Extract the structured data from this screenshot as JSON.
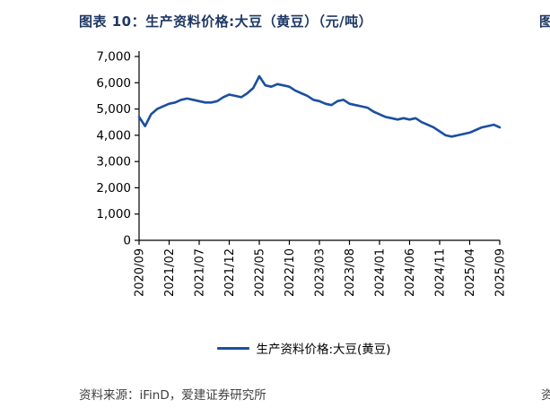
{
  "header": {
    "title": "图表 10：生产资料价格:大豆（黄豆）（元/吨）"
  },
  "footer": {
    "source": "资料来源：iFinD，爱建证券研究所"
  },
  "edge": {
    "top_right_partial": "图",
    "bottom_right_partial": "资"
  },
  "colors": {
    "line": "#1b4fa0",
    "title": "#1f3864",
    "axis": "#000000",
    "source_text": "#404040"
  },
  "chart_data": {
    "type": "line",
    "title": "图表 10：生产资料价格:大豆（黄豆）（元/吨）",
    "legend_label": "生产资料价格:大豆(黄豆)",
    "unit": "元/吨",
    "ylim": [
      0,
      7000
    ],
    "y_ticks": [
      0,
      1000,
      2000,
      3000,
      4000,
      5000,
      6000,
      7000
    ],
    "y_tick_labels": [
      "0",
      "1,000",
      "2,000",
      "3,000",
      "4,000",
      "5,000",
      "6,000",
      "7,000"
    ],
    "x_tick_labels": [
      "2020/09",
      "2021/02",
      "2021/07",
      "2021/12",
      "2022/05",
      "2022/10",
      "2023/03",
      "2023/08",
      "2024/01",
      "2024/06",
      "2024/11",
      "2025/04",
      "2025/09"
    ],
    "x_tick_every_n_points": 5,
    "x_range": [
      "2020/09",
      "2025/09"
    ],
    "values": [
      4700,
      4350,
      4800,
      5000,
      5100,
      5200,
      5250,
      5350,
      5400,
      5350,
      5300,
      5250,
      5250,
      5300,
      5450,
      5550,
      5500,
      5450,
      5600,
      5800,
      6250,
      5900,
      5850,
      5950,
      5900,
      5850,
      5700,
      5600,
      5500,
      5350,
      5300,
      5200,
      5150,
      5300,
      5350,
      5200,
      5150,
      5100,
      5050,
      4900,
      4800,
      4700,
      4650,
      4600,
      4650,
      4600,
      4650,
      4500,
      4400,
      4300,
      4150,
      4000,
      3950,
      4000,
      4050,
      4100,
      4200,
      4300,
      4350,
      4400,
      4300
    ],
    "grid": false,
    "legend_position": "bottom-center"
  }
}
